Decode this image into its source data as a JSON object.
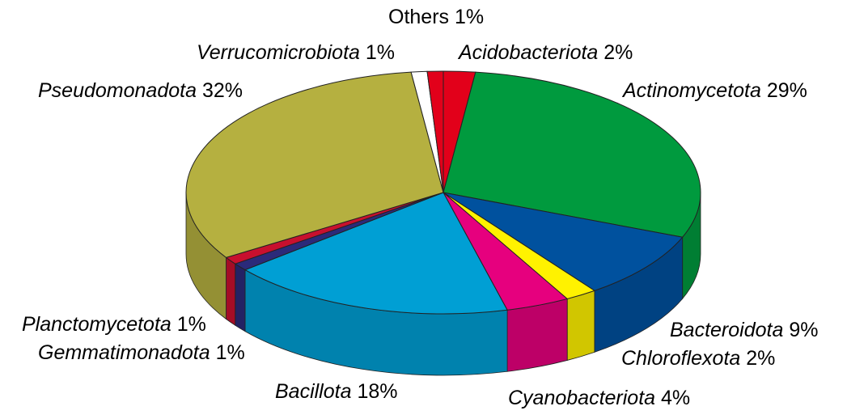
{
  "chart_data": {
    "type": "pie",
    "style": "3d-pie",
    "title": "",
    "unit": "%",
    "direction": "clockwise from top",
    "slices": [
      {
        "name": "Acidobacteriota",
        "value": 2,
        "label": "2%",
        "color": "#e2001a"
      },
      {
        "name": "Actinomycetota",
        "value": 29,
        "label": "29%",
        "color": "#009a3e"
      },
      {
        "name": "Bacteroidota",
        "value": 9,
        "label": "9%",
        "color": "#00519e"
      },
      {
        "name": "Chloroflexota",
        "value": 2,
        "label": "2%",
        "color": "#fff200"
      },
      {
        "name": "Cyanobacteriota",
        "value": 4,
        "label": "4%",
        "color": "#e6007e"
      },
      {
        "name": "Bacillota",
        "value": 18,
        "label": "18%",
        "color": "#009fd4"
      },
      {
        "name": "Gemmatimonadota",
        "value": 1,
        "label": "1%",
        "color": "#2b2a7a"
      },
      {
        "name": "Planctomycetota",
        "value": 1,
        "label": "1%",
        "color": "#c8102e"
      },
      {
        "name": "Pseudomonadota",
        "value": 32,
        "label": "32%",
        "color": "#b5b040"
      },
      {
        "name": "Verrucomicrobiota",
        "value": 1,
        "label": "1%",
        "color": "#ffffff"
      },
      {
        "name": "Others",
        "value": 1,
        "label": "1%",
        "color": "#e2001a"
      }
    ]
  }
}
